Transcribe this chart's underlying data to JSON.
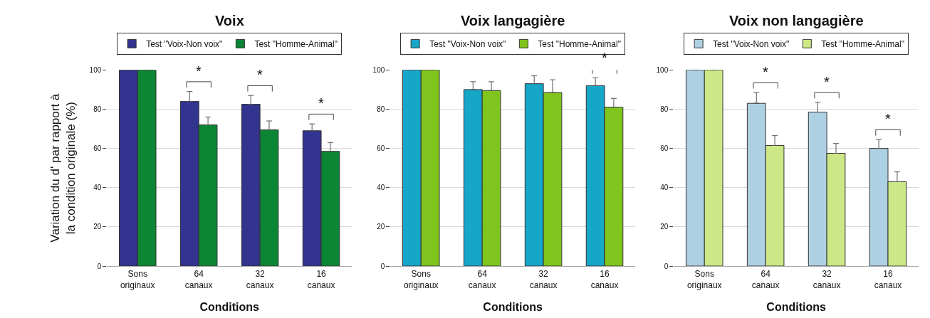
{
  "chart_data": [
    {
      "type": "bar",
      "title": "Voix",
      "xlabel": "Conditions",
      "ylabel": "Variation du d' par rapport à\nla condition originale (%)",
      "categories": [
        "Sons\noriginaux",
        "64\ncanaux",
        "32\ncanaux",
        "16\ncanaux"
      ],
      "ylim": [
        0,
        100
      ],
      "yticks": [
        0,
        20,
        40,
        60,
        80,
        100
      ],
      "grid": "y",
      "legend": "top",
      "series": [
        {
          "name": "Test \"Voix-Non voix\"",
          "color": "#32348f",
          "values": [
            100,
            84,
            82.5,
            69
          ],
          "errors": [
            null,
            [
              84,
              89
            ],
            [
              82.5,
              87
            ],
            [
              69,
              72.5
            ]
          ]
        },
        {
          "name": "Test \"Homme-Animal\"",
          "color": "#0c8534",
          "values": [
            100,
            72,
            69.5,
            58.5
          ],
          "errors": [
            null,
            [
              72,
              76
            ],
            [
              69.5,
              74
            ],
            [
              58.5,
              63
            ]
          ]
        }
      ],
      "annotations": [
        "*",
        "*",
        "*"
      ]
    },
    {
      "type": "bar",
      "title": "Voix langagière",
      "xlabel": "Conditions",
      "categories": [
        "Sons\noriginaux",
        "64\ncanaux",
        "32\ncanaux",
        "16\ncanaux"
      ],
      "ylim": [
        0,
        100
      ],
      "yticks": [
        0,
        20,
        40,
        60,
        80,
        100
      ],
      "grid": "y",
      "legend": "top",
      "series": [
        {
          "name": "Test \"Voix-Non voix\"",
          "color": "#15a6c8",
          "values": [
            100,
            90,
            93,
            92
          ],
          "errors": [
            null,
            [
              90,
              94
            ],
            [
              93,
              97
            ],
            [
              92,
              96
            ]
          ]
        },
        {
          "name": "Test \"Homme-Animal\"",
          "color": "#80c41e",
          "values": [
            100,
            89.5,
            88.5,
            81
          ],
          "errors": [
            null,
            [
              89.5,
              94
            ],
            [
              88.5,
              95
            ],
            [
              81,
              85.5
            ]
          ]
        }
      ],
      "annotations": [
        "*"
      ]
    },
    {
      "type": "bar",
      "title": "Voix non langagière",
      "xlabel": "Conditions",
      "categories": [
        "Sons\noriginaux",
        "64\ncanaux",
        "32\ncanaux",
        "16\ncanaux"
      ],
      "ylim": [
        0,
        100
      ],
      "yticks": [
        0,
        20,
        40,
        60,
        80,
        100
      ],
      "grid": "y",
      "legend": "top",
      "series": [
        {
          "name": "Test \"Voix-Non voix\"",
          "color": "#aed0e3",
          "values": [
            100,
            83,
            78.5,
            60
          ],
          "errors": [
            null,
            [
              83,
              88.5
            ],
            [
              78.5,
              83.5
            ],
            [
              60,
              64.5
            ]
          ]
        },
        {
          "name": "Test \"Homme-Animal\"",
          "color": "#cce886",
          "values": [
            100,
            61.5,
            57.5,
            43
          ],
          "errors": [
            null,
            [
              61.5,
              66.5
            ],
            [
              57.5,
              62.5
            ],
            [
              43,
              48
            ]
          ]
        }
      ],
      "annotations": [
        "*",
        "*",
        "*"
      ]
    }
  ]
}
